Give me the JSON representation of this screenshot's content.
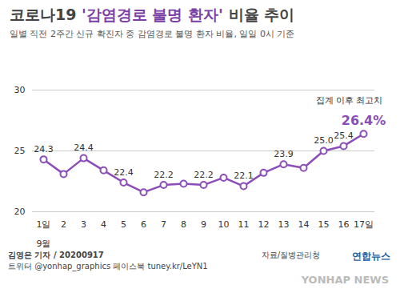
{
  "chart_data": {
    "type": "line",
    "title": "코로나19 '감염경로 불명 환자' 비율 추이",
    "title_highlight": "'감염경로 불명 환자'",
    "subtitle": "일별 직전 2주간 신규 확진자 중 감염경로 불명 환자 비율, 일일 0시 기준",
    "xlabel": "9월",
    "categories": [
      "1일",
      "2",
      "3",
      "4",
      "5",
      "6",
      "7",
      "8",
      "9",
      "10",
      "11",
      "12",
      "13",
      "14",
      "15",
      "16",
      "17일"
    ],
    "values": [
      24.3,
      23.1,
      24.4,
      23.4,
      22.4,
      21.6,
      22.2,
      22.3,
      22.2,
      22.8,
      22.1,
      23.2,
      23.9,
      23.6,
      25.0,
      25.4,
      26.4
    ],
    "value_labels": [
      "24.3",
      null,
      "24.4",
      null,
      "22.4",
      null,
      "22.2",
      null,
      "22.2",
      null,
      "22.1",
      null,
      "23.9",
      null,
      "25.0",
      "25.4",
      "26.4%"
    ],
    "data_labels": true,
    "annotation": "집계 이후 최고치",
    "color": "#8b4db8",
    "marker": "circle",
    "ylim": [
      20,
      30
    ],
    "yticks": [
      20,
      25,
      30
    ],
    "grid": true,
    "source": "자료/질병관리청",
    "byline": "김영은 기자 / 20200917",
    "social": "트위터 @yonhap_graphics  페이스북 tuney.kr/LeYN1",
    "brand": "연합뉴스",
    "watermark": "YONHAP NEWS"
  }
}
